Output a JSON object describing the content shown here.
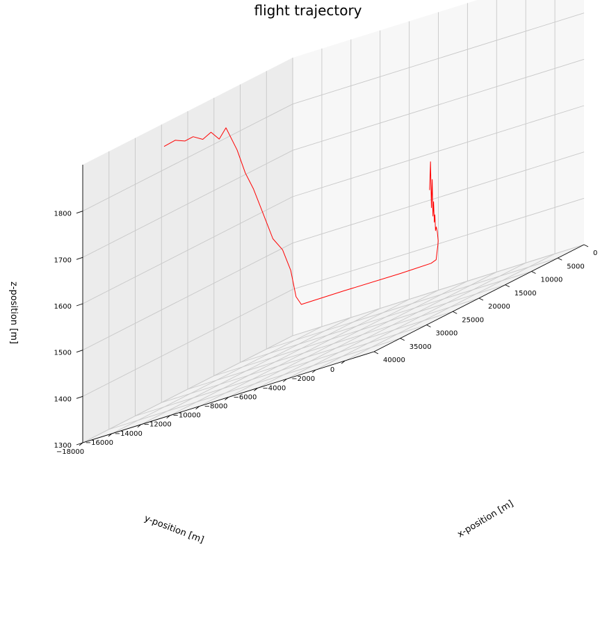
{
  "chart_data": {
    "type": "line",
    "projection": "3d",
    "title": "flight trajectory",
    "xlabel": "x-position [m]",
    "ylabel": "y-position [m]",
    "zlabel": "z-position [m]",
    "xlim": [
      0,
      40000
    ],
    "ylim": [
      -18000,
      2000
    ],
    "zlim": [
      1300,
      1900
    ],
    "x_ticks": [
      "0",
      "5000",
      "10000",
      "15000",
      "20000",
      "25000",
      "30000",
      "35000",
      "40000"
    ],
    "y_ticks": [
      "−18000",
      "−16000",
      "−14000",
      "−12000",
      "−10000",
      "−8000",
      "−6000",
      "−4000",
      "−2000",
      "0"
    ],
    "z_ticks": [
      "1300",
      "1400",
      "1500",
      "1600",
      "1700",
      "1800"
    ],
    "grid": true,
    "series": [
      {
        "color": "#ff0000",
        "points": [
          [
            24500,
            -18000,
            1850
          ],
          [
            24600,
            -17200,
            1856
          ],
          [
            24700,
            -16500,
            1848
          ],
          [
            24800,
            -15900,
            1852
          ],
          [
            24900,
            -15200,
            1840
          ],
          [
            25000,
            -14600,
            1850
          ],
          [
            25100,
            -14000,
            1830
          ],
          [
            25200,
            -13500,
            1850
          ],
          [
            25300,
            -12700,
            1795
          ],
          [
            25400,
            -12100,
            1740
          ],
          [
            25500,
            -11500,
            1700
          ],
          [
            25600,
            -10800,
            1640
          ],
          [
            25700,
            -10100,
            1580
          ],
          [
            25800,
            -9400,
            1550
          ],
          [
            25900,
            -8800,
            1500
          ],
          [
            26000,
            -8400,
            1440
          ],
          [
            26100,
            -8000,
            1420
          ],
          [
            26300,
            -5000,
            1421
          ],
          [
            26600,
            -1000,
            1421
          ],
          [
            26900,
            1200,
            1423
          ],
          [
            27200,
            1650,
            1428
          ],
          [
            27700,
            1950,
            1460
          ],
          [
            28200,
            2150,
            1470
          ],
          [
            28500,
            2200,
            1490
          ],
          [
            28700,
            2200,
            1502
          ],
          [
            28900,
            2220,
            1495
          ],
          [
            29100,
            2250,
            1530
          ],
          [
            29300,
            2280,
            1515
          ],
          [
            29500,
            2300,
            1560
          ],
          [
            29700,
            2330,
            1530
          ],
          [
            29900,
            2350,
            1610
          ],
          [
            30100,
            2370,
            1550
          ],
          [
            30300,
            2380,
            1650
          ],
          [
            30500,
            2390,
            1590
          ]
        ]
      }
    ]
  }
}
